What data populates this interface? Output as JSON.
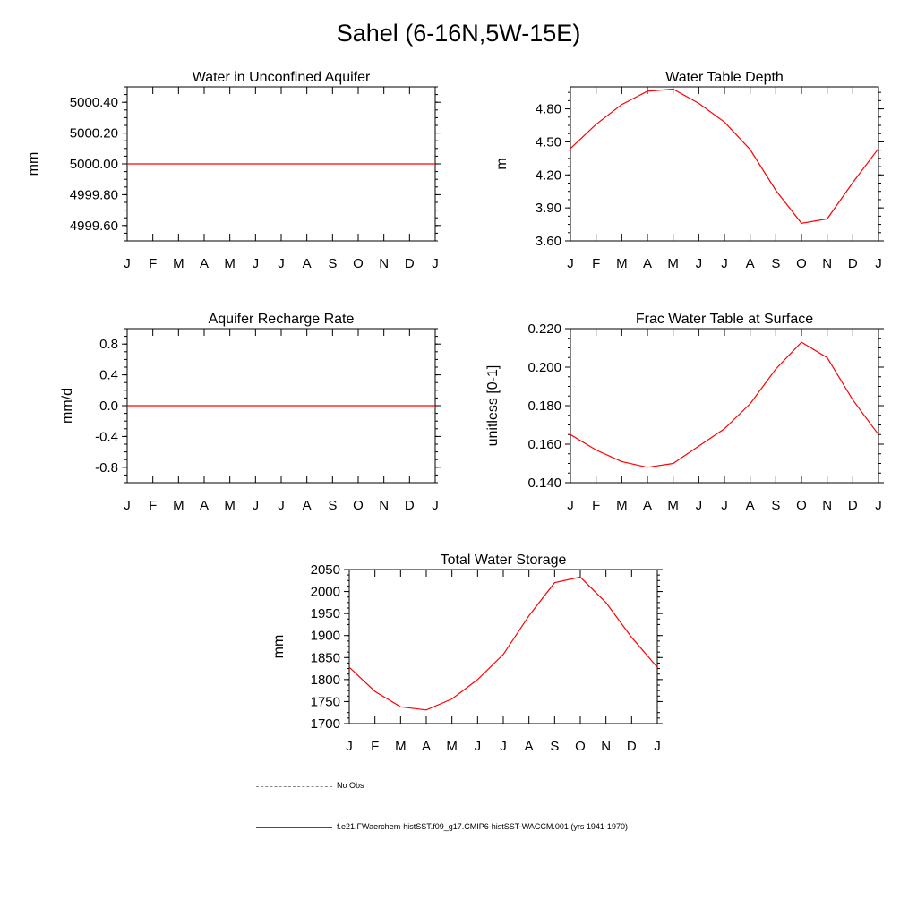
{
  "title": "Sahel (6-16N,5W-15E)",
  "colors": {
    "model": "#ff0000",
    "obs": "#888888",
    "axis": "#000000"
  },
  "legend": {
    "obs_label": "No Obs",
    "model_label": "f.e21.FWaerchem-histSST.f09_g17.CMIP6-histSST-WACCM.001 (yrs 1941-1970)"
  },
  "chart_data": [
    {
      "id": "aquifer",
      "type": "line",
      "title": "Water in Unconfined Aquifer",
      "ylabel": "mm",
      "categories": [
        "J",
        "F",
        "M",
        "A",
        "M",
        "J",
        "J",
        "A",
        "S",
        "O",
        "N",
        "D",
        "J"
      ],
      "ylim": [
        4999.5,
        5000.5
      ],
      "yticks": [
        4999.6,
        4999.8,
        5000.0,
        5000.2,
        5000.4
      ],
      "ytick_labels": [
        "4999.60",
        "4999.80",
        "5000.00",
        "5000.20",
        "5000.40"
      ],
      "series": [
        {
          "values": [
            5000,
            5000,
            5000,
            5000,
            5000,
            5000,
            5000,
            5000,
            5000,
            5000,
            5000,
            5000,
            5000
          ]
        }
      ]
    },
    {
      "id": "wtd",
      "type": "line",
      "title": "Water Table Depth",
      "ylabel": "m",
      "categories": [
        "J",
        "F",
        "M",
        "A",
        "M",
        "J",
        "J",
        "A",
        "S",
        "O",
        "N",
        "D",
        "J"
      ],
      "ylim": [
        3.6,
        5.0
      ],
      "yticks": [
        3.6,
        3.9,
        4.2,
        4.5,
        4.8
      ],
      "ytick_labels": [
        "3.60",
        "3.90",
        "4.20",
        "4.50",
        "4.80"
      ],
      "series": [
        {
          "values": [
            4.44,
            4.66,
            4.84,
            4.96,
            4.98,
            4.85,
            4.68,
            4.43,
            4.06,
            3.76,
            3.8,
            4.13,
            4.44
          ]
        }
      ]
    },
    {
      "id": "recharge",
      "type": "line",
      "title": "Aquifer Recharge Rate",
      "ylabel": "mm/d",
      "categories": [
        "J",
        "F",
        "M",
        "A",
        "M",
        "J",
        "J",
        "A",
        "S",
        "O",
        "N",
        "D",
        "J"
      ],
      "ylim": [
        -1.0,
        1.0
      ],
      "yticks": [
        -0.8,
        -0.4,
        0.0,
        0.4,
        0.8
      ],
      "ytick_labels": [
        "-0.8",
        "-0.4",
        "0.0",
        "0.4",
        "0.8"
      ],
      "series": [
        {
          "values": [
            0,
            0,
            0,
            0,
            0,
            0,
            0,
            0,
            0,
            0,
            0,
            0,
            0
          ]
        }
      ]
    },
    {
      "id": "frac",
      "type": "line",
      "title": "Frac Water Table at Surface",
      "ylabel": "unitless [0-1]",
      "categories": [
        "J",
        "F",
        "M",
        "A",
        "M",
        "J",
        "J",
        "A",
        "S",
        "O",
        "N",
        "D",
        "J"
      ],
      "ylim": [
        0.14,
        0.22
      ],
      "yticks": [
        0.14,
        0.16,
        0.18,
        0.2,
        0.22
      ],
      "ytick_labels": [
        "0.140",
        "0.160",
        "0.180",
        "0.200",
        "0.220"
      ],
      "series": [
        {
          "values": [
            0.165,
            0.157,
            0.151,
            0.148,
            0.15,
            0.159,
            0.168,
            0.181,
            0.199,
            0.213,
            0.205,
            0.183,
            0.165
          ]
        }
      ]
    },
    {
      "id": "tws",
      "type": "line",
      "title": "Total Water Storage",
      "ylabel": "mm",
      "categories": [
        "J",
        "F",
        "M",
        "A",
        "M",
        "J",
        "J",
        "A",
        "S",
        "O",
        "N",
        "D",
        "J"
      ],
      "ylim": [
        1700,
        2050
      ],
      "yticks": [
        1700,
        1750,
        1800,
        1850,
        1900,
        1950,
        2000,
        2050
      ],
      "ytick_labels": [
        "1700",
        "1750",
        "1800",
        "1850",
        "1900",
        "1950",
        "2000",
        "2050"
      ],
      "series": [
        {
          "values": [
            1828,
            1773,
            1738,
            1731,
            1756,
            1800,
            1857,
            1945,
            2020,
            2033,
            1975,
            1896,
            1828
          ]
        }
      ]
    }
  ]
}
